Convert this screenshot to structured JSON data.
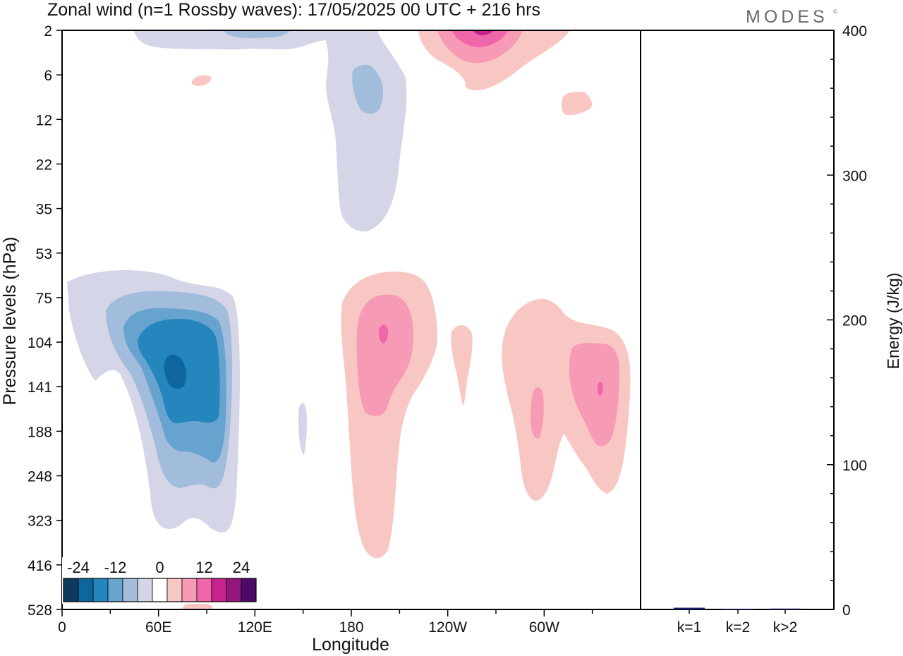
{
  "title": "Zonal wind (n=1 Rossby waves):  17/05/2025  00 UTC  + 216 hrs",
  "brand": "MODES",
  "brand_mark": "©",
  "chart_data": [
    {
      "type": "heatmap",
      "title": "Zonal wind (n=1 Rossby waves):  17/05/2025  00 UTC  + 216 hrs",
      "xlabel": "Longitude",
      "ylabel": "Pressure levels (hPa)",
      "x_ticks": [
        "0",
        "60E",
        "120E",
        "180",
        "120W",
        "60W"
      ],
      "y_ticks": [
        "2",
        "6",
        "12",
        "22",
        "35",
        "53",
        "75",
        "104",
        "141",
        "188",
        "248",
        "323",
        "416",
        "528"
      ],
      "xlim": [
        0,
        360
      ],
      "y_reversed": true,
      "colorbar": {
        "labels": [
          "-24",
          "-12",
          "0",
          "12",
          "24"
        ],
        "levels": [
          -30,
          -25,
          -20,
          -15,
          -10,
          -5,
          0,
          5,
          10,
          15,
          20,
          25,
          30
        ],
        "colors": [
          "#0b3a5e",
          "#0e669e",
          "#2585bd",
          "#66a3cf",
          "#a2bcdc",
          "#d4d6e8",
          "#ffffff",
          "#f8c7c3",
          "#f79ab5",
          "#f066aa",
          "#c6238f",
          "#92177d",
          "#4d0a67"
        ]
      },
      "features": [
        {
          "sign": "negative",
          "lon": 70,
          "level_hPa": 125,
          "min_ms": -26
        },
        {
          "sign": "negative",
          "lon": 180,
          "level_hPa": 6,
          "min_ms": -12
        },
        {
          "sign": "positive",
          "lon": 192,
          "level_hPa": 100,
          "max_ms": 18
        },
        {
          "sign": "positive",
          "lon": 262,
          "level_hPa": 2,
          "max_ms": 22
        },
        {
          "sign": "positive",
          "lon": 335,
          "level_hPa": 130,
          "max_ms": 17
        }
      ]
    },
    {
      "type": "bar",
      "ylabel": "Energy (J/kg)",
      "categories": [
        "k=1",
        "k=2",
        "k>2"
      ],
      "values": [
        1.2,
        0.3,
        0.6
      ],
      "ylim": [
        0,
        400
      ],
      "y_ticks": [
        "0",
        "100",
        "200",
        "300",
        "400"
      ],
      "bar_color": "#1a1a6e"
    }
  ]
}
